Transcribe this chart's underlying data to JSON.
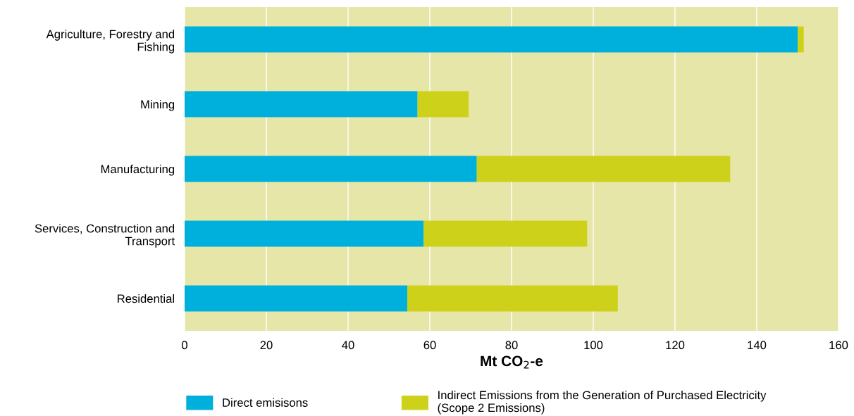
{
  "chart_data": {
    "type": "bar",
    "orientation": "horizontal",
    "stacked": true,
    "categories": [
      "Agriculture, Forestry and\nFishing",
      "Mining",
      "Manufacturing",
      "Services, Construction and\nTransport",
      "Residential"
    ],
    "series": [
      {
        "name": "Direct emisisons",
        "color": "#00b0dc",
        "values": [
          150,
          57,
          71.5,
          58.5,
          54.5
        ]
      },
      {
        "name": "Indirect Emissions from the Generation of Purchased Electricity\n(Scope 2 Emissions)",
        "color": "#cdd11a",
        "values": [
          1.5,
          12.5,
          62,
          40,
          51.5
        ]
      }
    ],
    "xlabel": "Mt CO$_{2}$-e",
    "xlim": [
      0,
      160
    ],
    "xticks": [
      0,
      20,
      40,
      60,
      80,
      100,
      120,
      140,
      160
    ],
    "grid": "x",
    "legend": "bottom"
  }
}
